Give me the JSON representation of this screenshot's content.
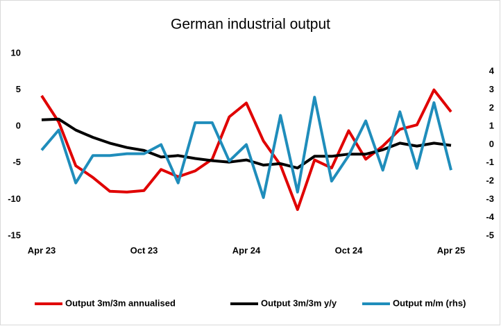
{
  "chart_data": {
    "type": "line",
    "title": "German industrial output",
    "categories": [
      "Apr 23",
      null,
      null,
      null,
      null,
      null,
      "Oct 23",
      null,
      null,
      null,
      null,
      null,
      "Apr 24",
      null,
      null,
      null,
      null,
      null,
      "Oct 24",
      null,
      null,
      null,
      null,
      null,
      "Apr 25"
    ],
    "series": [
      {
        "name": "Output 3m/3m annualised",
        "color": "#e00000",
        "values": [
          4.2,
          0.6,
          -5.4,
          -7.0,
          -8.9,
          -9.0,
          -8.8,
          -5.9,
          -6.9,
          -6.1,
          -4.5,
          1.3,
          3.2,
          -2.0,
          -5.3,
          -11.4,
          -4.6,
          -5.7,
          -0.6,
          -4.5,
          -2.7,
          -0.4,
          0.2,
          5.0,
          2.0
        ]
      },
      {
        "name": "Output 3m/3m y/y",
        "color": "#000000",
        "values": [
          0.9,
          1.0,
          -0.5,
          -1.5,
          -2.3,
          -2.9,
          -3.3,
          -4.2,
          -4.0,
          -4.4,
          -4.7,
          -4.9,
          -4.6,
          -5.3,
          -5.1,
          -5.7,
          -4.1,
          -4.1,
          -3.8,
          -3.8,
          -3.2,
          -2.3,
          -2.7,
          -2.3,
          -2.6
        ]
      },
      {
        "name": "Output m/m (rhs)",
        "color": "#1f8dbb",
        "axis": "y2",
        "values": [
          -0.3,
          0.8,
          -2.1,
          -0.6,
          -0.6,
          -0.5,
          -0.5,
          0.0,
          -2.1,
          1.2,
          1.2,
          -0.9,
          0.0,
          -2.9,
          1.6,
          -2.6,
          2.6,
          -2.0,
          -0.6,
          1.3,
          -1.4,
          1.8,
          -1.3,
          2.3,
          -1.4
        ]
      }
    ],
    "ylim": [
      -15,
      10
    ],
    "yticks": [
      -15,
      -10,
      -5,
      0,
      5,
      10
    ],
    "y2lim": [
      -5,
      5
    ],
    "y2ticks": [
      -5,
      -4,
      -3,
      -2,
      -1,
      0,
      1,
      2,
      3,
      4
    ],
    "grid": false,
    "legend": "bottom"
  }
}
